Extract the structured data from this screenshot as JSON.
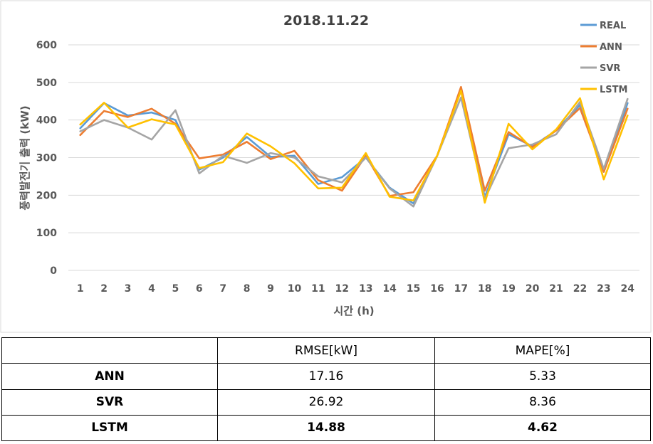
{
  "chart_data": {
    "type": "line",
    "title": "2018.11.22",
    "xlabel": "시간 (h)",
    "ylabel": "풍력발전기 출력 (kW)",
    "x": [
      1,
      2,
      3,
      4,
      5,
      6,
      7,
      8,
      9,
      10,
      11,
      12,
      13,
      14,
      15,
      16,
      17,
      18,
      19,
      20,
      21,
      22,
      23,
      24
    ],
    "ylim": [
      0,
      600
    ],
    "yticks": [
      0,
      100,
      200,
      300,
      400,
      500,
      600
    ],
    "grid": true,
    "legend_position": "top-right",
    "series": [
      {
        "name": "REAL",
        "color": "#5B9BD5",
        "values": [
          378,
          445,
          412,
          420,
          400,
          268,
          300,
          355,
          302,
          305,
          230,
          248,
          300,
          220,
          178,
          305,
          480,
          195,
          362,
          330,
          372,
          440,
          262,
          445
        ]
      },
      {
        "name": "ANN",
        "color": "#ED7D31",
        "values": [
          360,
          424,
          408,
          430,
          390,
          298,
          308,
          342,
          296,
          318,
          240,
          212,
          305,
          198,
          208,
          305,
          488,
          212,
          368,
          328,
          372,
          432,
          262,
          430
        ]
      },
      {
        "name": "SVR",
        "color": "#A5A5A5",
        "values": [
          370,
          400,
          380,
          348,
          426,
          258,
          305,
          286,
          312,
          300,
          250,
          234,
          300,
          218,
          170,
          305,
          460,
          190,
          325,
          335,
          362,
          448,
          270,
          456
        ]
      },
      {
        "name": "LSTM",
        "color": "#FFC000",
        "values": [
          388,
          446,
          380,
          402,
          388,
          272,
          288,
          364,
          330,
          285,
          218,
          220,
          312,
          196,
          186,
          305,
          478,
          180,
          390,
          322,
          375,
          458,
          242,
          412
        ]
      }
    ]
  },
  "table": {
    "headers": [
      "",
      "RMSE[kW]",
      "MAPE[%]"
    ],
    "rows": [
      {
        "label": "ANN",
        "rmse": "17.16",
        "mape": "5.33"
      },
      {
        "label": "SVR",
        "rmse": "26.92",
        "mape": "8.36"
      },
      {
        "label": "LSTM",
        "rmse": "14.88",
        "mape": "4.62"
      }
    ]
  }
}
